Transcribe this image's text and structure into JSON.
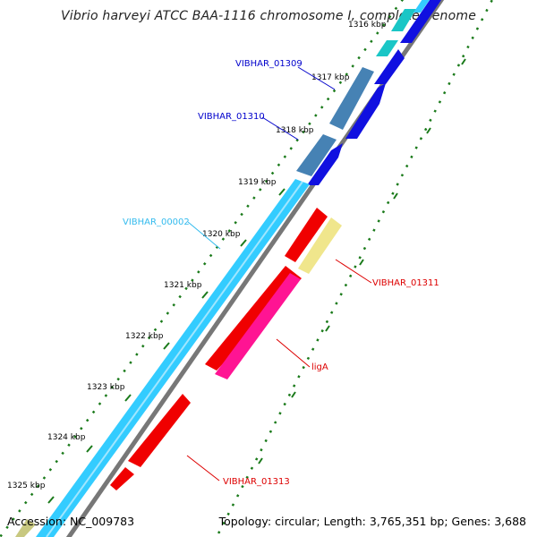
{
  "title": "Vibrio harveyi ATCC BAA-1116 chromosome I, complete genome",
  "footer": {
    "accession": "Accession: NC_009783",
    "summary": "Topology: circular; Length: 3,765,351 bp; Genes: 3,688"
  },
  "ticks": [
    "1316 kbp",
    "1317 kbp",
    "1318 kbp",
    "1319 kbp",
    "1320 kbp",
    "1321 kbp",
    "1322 kbp",
    "1323 kbp",
    "1324 kbp",
    "1325 kbp"
  ],
  "genes": {
    "g1309": "VIBHAR_01309",
    "g1310": "VIBHAR_01310",
    "g0002": "VIBHAR_00002",
    "g1311": "VIBHAR_01311",
    "ligA": "ligA",
    "g1313": "VIBHAR_01313"
  },
  "colors": {
    "cds": "#1010e0",
    "gene": "#4682b4",
    "contig": "#33ccff",
    "red": "#f00000",
    "pink": "#ff1493",
    "khaki": "#f0e68c",
    "teal": "#1ac6c6",
    "gray": "#777777",
    "dots": "#1a7a1a",
    "blue_label": "#0000cc",
    "cyan_label": "#33bbee",
    "red_label": "#dd0000"
  }
}
